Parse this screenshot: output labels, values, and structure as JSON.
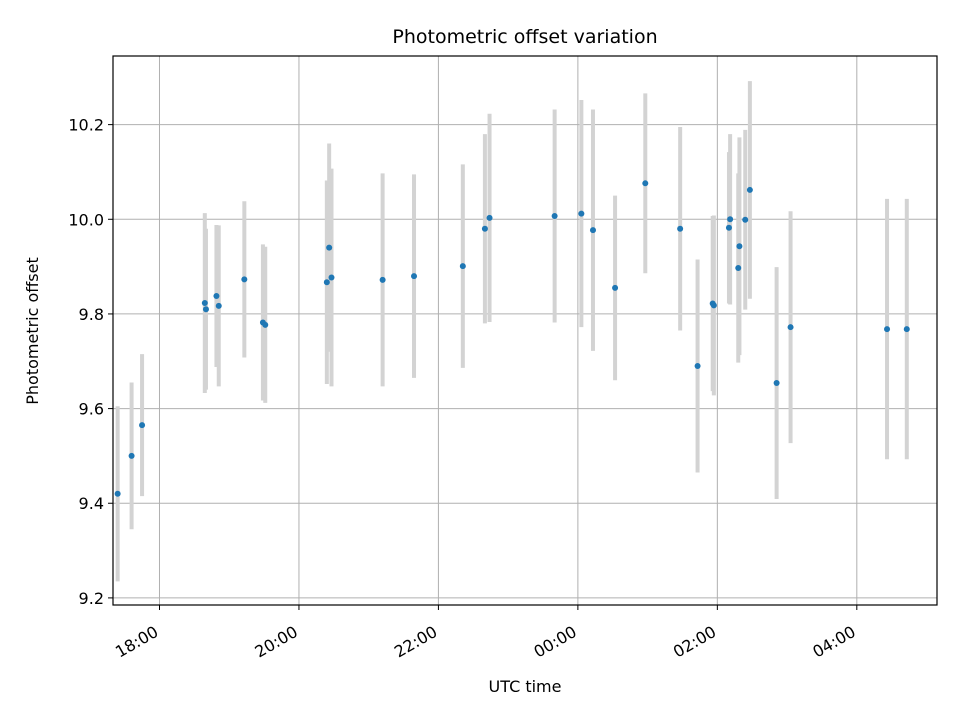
{
  "chart_data": {
    "type": "scatter",
    "title": "Photometric offset variation",
    "xlabel": "UTC time",
    "ylabel": "Photometric offset",
    "x_axis_kind": "time",
    "xlim": [
      "17:20",
      "05:09"
    ],
    "ylim": [
      9.185,
      10.345
    ],
    "xticks": [
      "18:00",
      "20:00",
      "22:00",
      "00:00",
      "02:00",
      "04:00"
    ],
    "yticks": [
      "9.2",
      "9.4",
      "9.6",
      "9.8",
      "10.0",
      "10.2"
    ],
    "grid": true,
    "point_color": "#1f77b4",
    "errorbar_color": "#d3d3d3",
    "points": [
      {
        "t": "17:24",
        "y": 9.42,
        "yerr": 0.185
      },
      {
        "t": "17:36",
        "y": 9.5,
        "yerr": 0.155
      },
      {
        "t": "17:45",
        "y": 9.565,
        "yerr": 0.15
      },
      {
        "t": "18:39",
        "y": 9.823,
        "yerr": 0.19
      },
      {
        "t": "18:40",
        "y": 9.81,
        "yerr": 0.17
      },
      {
        "t": "18:49",
        "y": 9.838,
        "yerr": 0.15
      },
      {
        "t": "18:51",
        "y": 9.817,
        "yerr": 0.17
      },
      {
        "t": "19:13",
        "y": 9.873,
        "yerr": 0.165
      },
      {
        "t": "19:29",
        "y": 9.782,
        "yerr": 0.165
      },
      {
        "t": "19:31",
        "y": 9.777,
        "yerr": 0.165
      },
      {
        "t": "20:24",
        "y": 9.867,
        "yerr": 0.215
      },
      {
        "t": "20:26",
        "y": 9.94,
        "yerr": 0.22
      },
      {
        "t": "20:28",
        "y": 9.877,
        "yerr": 0.23
      },
      {
        "t": "21:12",
        "y": 9.872,
        "yerr": 0.225
      },
      {
        "t": "21:39",
        "y": 9.88,
        "yerr": 0.215
      },
      {
        "t": "22:21",
        "y": 9.901,
        "yerr": 0.215
      },
      {
        "t": "22:40",
        "y": 9.98,
        "yerr": 0.2
      },
      {
        "t": "22:44",
        "y": 10.003,
        "yerr": 0.22
      },
      {
        "t": "23:40",
        "y": 10.007,
        "yerr": 0.225
      },
      {
        "t": "00:03",
        "y": 10.012,
        "yerr": 0.24
      },
      {
        "t": "00:13",
        "y": 9.977,
        "yerr": 0.255
      },
      {
        "t": "00:32",
        "y": 9.855,
        "yerr": 0.195
      },
      {
        "t": "00:58",
        "y": 10.076,
        "yerr": 0.19
      },
      {
        "t": "01:28",
        "y": 9.98,
        "yerr": 0.215
      },
      {
        "t": "01:43",
        "y": 9.69,
        "yerr": 0.225
      },
      {
        "t": "01:56",
        "y": 9.822,
        "yerr": 0.185
      },
      {
        "t": "01:57",
        "y": 9.818,
        "yerr": 0.19
      },
      {
        "t": "02:10",
        "y": 9.982,
        "yerr": 0.16
      },
      {
        "t": "02:11",
        "y": 10.0,
        "yerr": 0.18
      },
      {
        "t": "02:18",
        "y": 9.897,
        "yerr": 0.2
      },
      {
        "t": "02:19",
        "y": 9.943,
        "yerr": 0.23
      },
      {
        "t": "02:24",
        "y": 9.999,
        "yerr": 0.19
      },
      {
        "t": "02:28",
        "y": 10.062,
        "yerr": 0.23
      },
      {
        "t": "02:51",
        "y": 9.654,
        "yerr": 0.245
      },
      {
        "t": "03:03",
        "y": 9.772,
        "yerr": 0.245
      },
      {
        "t": "04:26",
        "y": 9.768,
        "yerr": 0.275
      },
      {
        "t": "04:43",
        "y": 9.768,
        "yerr": 0.275
      }
    ]
  }
}
